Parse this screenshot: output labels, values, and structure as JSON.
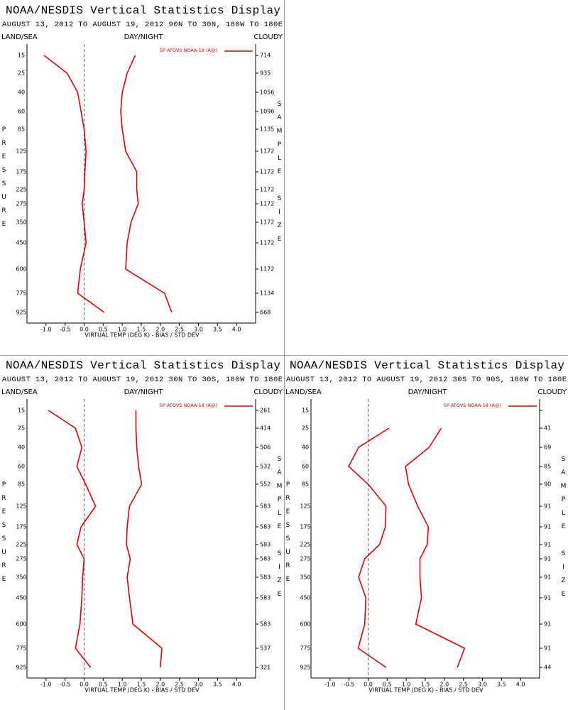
{
  "chart_data": [
    {
      "type": "line",
      "title": "NOAA/NESDIS Vertical Statistics Display",
      "subtitle": "AUGUST 13, 2012 TO AUGUST 19, 2012  90N TO 30N, 180W TO 180E",
      "filters": [
        "LAND/SEA",
        "DAY/NIGHT",
        "CLOUDY"
      ],
      "x_label": "VIRTUAL TEMP (DEG K) - BIAS / STD DEV",
      "y_label": "PRESSURE",
      "y2_label": "SAMPLE SIZE",
      "categories": [
        15,
        25,
        40,
        60,
        85,
        125,
        175,
        225,
        275,
        350,
        450,
        600,
        775,
        925
      ],
      "sample_size": [
        714,
        935,
        1056,
        1096,
        1135,
        1172,
        1172,
        1172,
        1172,
        1172,
        1172,
        1172,
        1134,
        668
      ],
      "series": [
        {
          "name": "SP ATOVS NOAA-18 (A@)",
          "color": "#e00000",
          "values": [
            -1.05,
            -0.45,
            -0.17,
            -0.08,
            0.0,
            0.05,
            0.02,
            0.0,
            -0.05,
            0.0,
            0.05,
            -0.1,
            -0.17,
            0.53
          ]
        },
        {
          "color": "#e00000",
          "values": [
            1.34,
            1.13,
            1.0,
            0.96,
            1.0,
            1.09,
            1.38,
            1.38,
            1.42,
            1.23,
            1.13,
            1.09,
            2.11,
            2.3
          ]
        }
      ],
      "xlim": [
        -1.5,
        4.5
      ],
      "xticks": [
        {
          "value": -1,
          "label": "-1.0"
        },
        -0.5,
        {
          "value": 0,
          "label": "0.0"
        },
        0.5,
        {
          "value": 1,
          "label": "1.0"
        },
        1.5,
        {
          "value": 2,
          "label": "2.0"
        },
        2.5,
        {
          "value": 3,
          "label": "3.0"
        },
        3.5,
        {
          "value": 4,
          "label": "4.0"
        }
      ]
    },
    {
      "type": "line",
      "title": "NOAA/NESDIS Vertical Statistics Display",
      "subtitle": "AUGUST 13, 2012 TO AUGUST 19, 2012  30N TO 30S, 180W TO 180E",
      "filters": [
        "LAND/SEA",
        "DAY/NIGHT",
        "CLOUDY"
      ],
      "x_label": "VIRTUAL TEMP (DEG K) - BIAS / STD DEV",
      "y_label": "PRESSURE",
      "y2_label": "SAMPLE SIZE",
      "categories": [
        15,
        25,
        40,
        60,
        85,
        125,
        175,
        225,
        275,
        350,
        450,
        600,
        775,
        925
      ],
      "sample_size": [
        261,
        414,
        506,
        532,
        552,
        583,
        583,
        583,
        583,
        583,
        583,
        583,
        537,
        321
      ],
      "series": [
        {
          "name": "SP ATOVS NOAA-18 (A@)",
          "color": "#e00000",
          "values": [
            -0.94,
            -0.23,
            -0.06,
            -0.19,
            0.04,
            0.3,
            -0.08,
            -0.19,
            0.0,
            -0.04,
            -0.06,
            -0.11,
            -0.23,
            0.17
          ]
        },
        {
          "color": "#e00000",
          "values": [
            1.36,
            1.36,
            1.38,
            1.43,
            1.51,
            1.19,
            1.13,
            1.11,
            1.21,
            1.13,
            1.19,
            1.28,
            2.04,
            2.0
          ]
        }
      ],
      "xlim": [
        -1.5,
        4.5
      ],
      "xticks": [
        {
          "value": -1,
          "label": "-1.0"
        },
        -0.5,
        {
          "value": 0,
          "label": "0.0"
        },
        0.5,
        {
          "value": 1,
          "label": "1.0"
        },
        1.5,
        {
          "value": 2,
          "label": "2.0"
        },
        2.5,
        {
          "value": 3,
          "label": "3.0"
        },
        3.5,
        {
          "value": 4,
          "label": "4.0"
        }
      ]
    },
    {
      "type": "line",
      "title": "NOAA/NESDIS Vertical Statistics Display",
      "subtitle": "AUGUST 13, 2012 TO AUGUST 19, 2012  30S TO 90S, 180W TO 180E",
      "filters": [
        "LAND/SEA",
        "DAY/NIGHT",
        "CLOUDY"
      ],
      "x_label": "VIRTUAL TEMP (DEG K) - BIAS / STD DEV",
      "y_label": "PRESSURE",
      "y2_label": "SAMPLE SIZE",
      "categories": [
        15,
        25,
        40,
        60,
        85,
        125,
        175,
        225,
        275,
        350,
        450,
        600,
        775,
        925
      ],
      "sample_size": [
        null,
        41,
        69,
        85,
        90,
        91,
        91,
        91,
        91,
        91,
        91,
        91,
        91,
        44
      ],
      "series": [
        {
          "name": "SP ATOVS NOAA-18 (A@)",
          "color": "#e00000",
          "values": [
            null,
            0.55,
            -0.25,
            -0.51,
            0.0,
            0.47,
            0.45,
            0.3,
            -0.09,
            -0.25,
            -0.06,
            -0.09,
            -0.26,
            0.47
          ]
        },
        {
          "color": "#e00000",
          "values": [
            null,
            1.92,
            1.6,
            0.98,
            1.06,
            1.3,
            1.58,
            1.55,
            1.36,
            1.36,
            1.4,
            1.25,
            2.53,
            2.34
          ]
        }
      ],
      "xlim": [
        -1.5,
        4.5
      ],
      "xticks": [
        {
          "value": -1,
          "label": "-1.0"
        },
        -0.5,
        {
          "value": 0,
          "label": "0.0"
        },
        0.5,
        {
          "value": 1,
          "label": "1.0"
        },
        1.5,
        {
          "value": 2,
          "label": "2.0"
        },
        2.5,
        {
          "value": 3,
          "label": "3.0"
        },
        3.5,
        {
          "value": 4,
          "label": "4.0"
        }
      ]
    }
  ]
}
